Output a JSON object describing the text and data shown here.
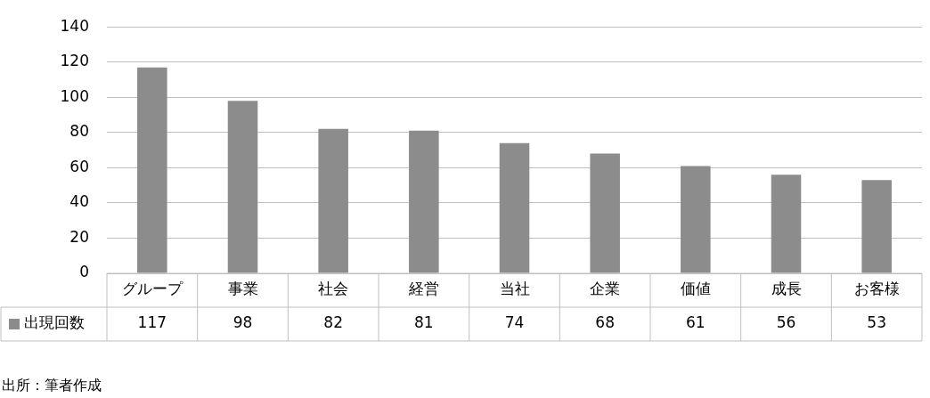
{
  "chart_data": {
    "type": "bar",
    "categories": [
      "グループ",
      "事業",
      "社会",
      "経営",
      "当社",
      "企業",
      "価値",
      "成長",
      "お客様"
    ],
    "series": [
      {
        "name": "出現回数",
        "color": "#8c8c8c",
        "values": [
          117,
          98,
          82,
          81,
          74,
          68,
          61,
          56,
          53
        ]
      }
    ],
    "ylim": [
      0,
      140
    ],
    "yticks": [
      0,
      20,
      40,
      60,
      80,
      100,
      120,
      140
    ],
    "grid": "y",
    "legend": "bottom left",
    "data_labels": true,
    "annotations": [
      "出所：筆者作成"
    ]
  }
}
